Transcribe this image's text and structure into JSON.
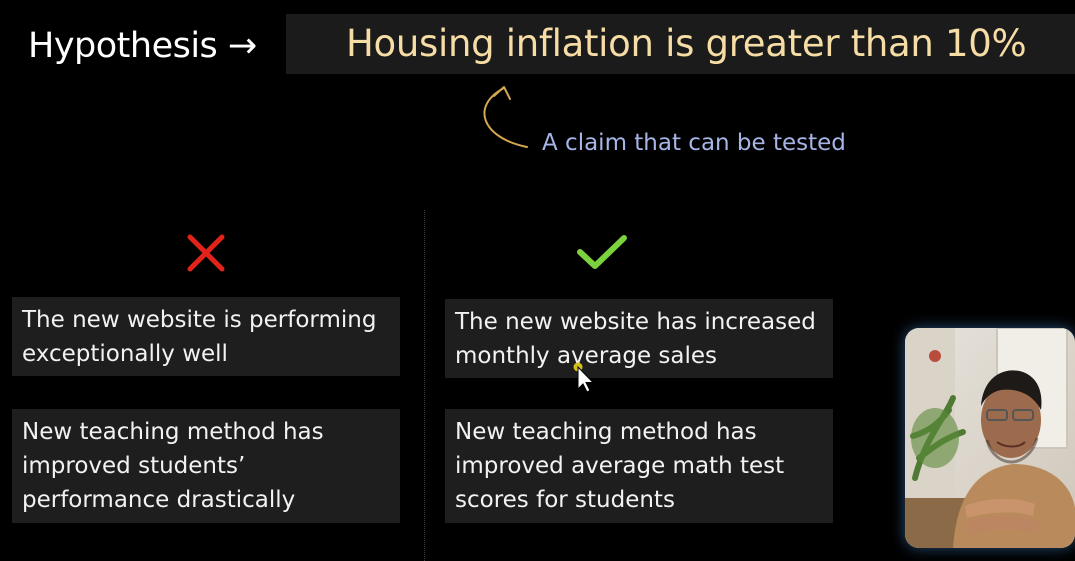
{
  "header": {
    "label": "Hypothesis →",
    "claim": "Housing inflation is greater than 10%"
  },
  "annotation": {
    "text": "A claim that can be tested"
  },
  "bad_column": {
    "icon": "x-icon",
    "items": [
      "The new website is performing exceptionally well",
      "New teaching method has improved students’ performance drastically"
    ]
  },
  "good_column": {
    "icon": "check-icon",
    "items": [
      "The new website has increased monthly average sales",
      "New teaching method has improved average math test scores for students"
    ]
  },
  "colors": {
    "background": "#000000",
    "claim_text": "#f6dca5",
    "annotation_text": "#a7b5e6",
    "card_bg": "#1e1e1e",
    "x_icon": "#e2231a",
    "check_icon": "#7bd13e",
    "webcam_glow": "#5aaaff"
  }
}
